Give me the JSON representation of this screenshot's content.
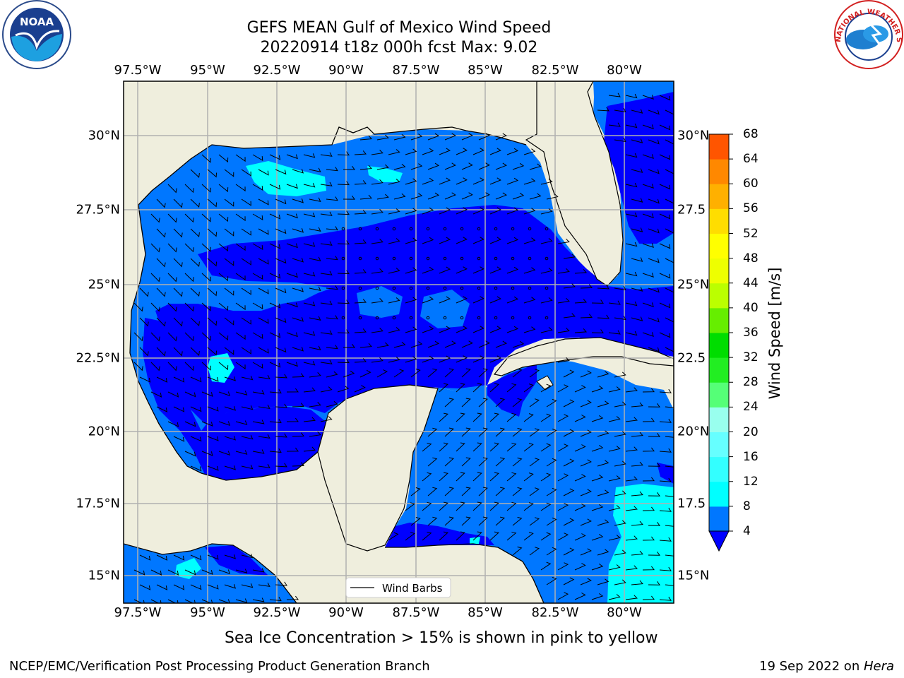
{
  "title_line1": "GEFS MEAN Gulf of Mexico Wind Speed",
  "title_line2": "20220914 t18z 000h fcst   Max: 9.02",
  "subtitle": "Sea Ice Concentration > 15% is shown in pink to yellow",
  "footer_left": "NCEP/EMC/Verification Post Processing Product Generation Branch",
  "footer_right_date": "19 Sep 2022 on ",
  "footer_right_host": "Hera",
  "legend_label": "Wind Barbs",
  "colorbar": {
    "label": "Wind Speed [m/s]",
    "ticks": [
      "4",
      "8",
      "12",
      "16",
      "20",
      "24",
      "28",
      "32",
      "36",
      "40",
      "44",
      "48",
      "52",
      "56",
      "60",
      "64",
      "68"
    ],
    "colors": [
      "#0077ff",
      "#00ffff",
      "#33ffff",
      "#66ffff",
      "#99ffee",
      "#55ff77",
      "#22ee22",
      "#00dd00",
      "#66ee00",
      "#bbff00",
      "#eeff00",
      "#ffff00",
      "#ffdd00",
      "#ffb000",
      "#ff8800",
      "#ff5500",
      "#ff2200"
    ],
    "extend_color": "#0000ff"
  },
  "lon_labels": [
    "97.5°W",
    "95°W",
    "92.5°W",
    "90°W",
    "87.5°W",
    "85°W",
    "82.5°W",
    "80°W"
  ],
  "lat_labels_left": [
    "30°N",
    "27.5°N",
    "25°N",
    "22.5°N",
    "20°N",
    "17.5°N",
    "15°N"
  ],
  "lat_labels_right": [
    "30°N",
    "27.5",
    "25°N",
    "22.5",
    "20°N",
    "17.5",
    "15°N"
  ],
  "map": {
    "lon_range": [
      -98,
      -78.2
    ],
    "lat_range": [
      14,
      31.8
    ],
    "land_color": "#efeedd",
    "ocean_low": "#0000ff",
    "ocean_mid": "#0077ff",
    "ocean_high": "#00ffff",
    "grid_color": "#b0b0b0"
  },
  "logos": {
    "noaa_text": "NOAA",
    "nws_text": "NATIONAL WEATHER SERVICE"
  }
}
